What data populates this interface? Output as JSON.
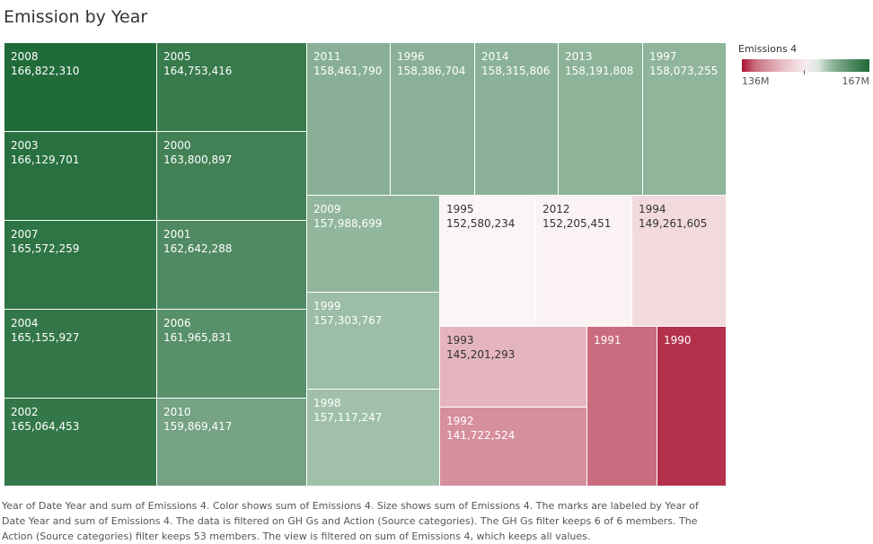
{
  "title": "Emission by Year",
  "legend": {
    "title": "Emissions 4",
    "min_label": "136M",
    "max_label": "167M"
  },
  "caption": "Year of Date Year and sum of Emissions 4.  Color shows sum of Emissions 4.  Size shows sum of Emissions 4.  The marks are labeled by Year of Date Year and sum of Emissions 4. The data is filtered on GH Gs and Action (Source categories). The GH Gs filter keeps 6 of 6 members. The Action (Source categories) filter keeps 53 members. The view is filtered on sum of Emissions 4, which keeps all values.",
  "chart_data": {
    "type": "treemap",
    "title": "Emission by Year",
    "measure": "Emissions 4",
    "color_range": [
      136000000,
      167000000
    ],
    "color_scale": {
      "low": "#a8102e",
      "mid": "#ffffff",
      "high": "#1f6a37"
    },
    "nodes": [
      {
        "year": "2008",
        "label": "166,822,310",
        "value": 166822310
      },
      {
        "year": "2003",
        "label": "166,129,701",
        "value": 166129701
      },
      {
        "year": "2007",
        "label": "165,572,259",
        "value": 165572259
      },
      {
        "year": "2004",
        "label": "165,155,927",
        "value": 165155927
      },
      {
        "year": "2002",
        "label": "165,064,453",
        "value": 165064453
      },
      {
        "year": "2005",
        "label": "164,753,416",
        "value": 164753416
      },
      {
        "year": "2000",
        "label": "163,800,897",
        "value": 163800897
      },
      {
        "year": "2001",
        "label": "162,642,288",
        "value": 162642288
      },
      {
        "year": "2006",
        "label": "161,965,831",
        "value": 161965831
      },
      {
        "year": "2010",
        "label": "159,869,417",
        "value": 159869417
      },
      {
        "year": "2011",
        "label": "158,461,790",
        "value": 158461790
      },
      {
        "year": "1996",
        "label": "158,386,704",
        "value": 158386704
      },
      {
        "year": "2014",
        "label": "158,315,806",
        "value": 158315806
      },
      {
        "year": "2013",
        "label": "158,191,808",
        "value": 158191808
      },
      {
        "year": "1997",
        "label": "158,073,255",
        "value": 158073255
      },
      {
        "year": "2009",
        "label": "157,988,699",
        "value": 157988699
      },
      {
        "year": "1999",
        "label": "157,303,767",
        "value": 157303767
      },
      {
        "year": "1998",
        "label": "157,117,247",
        "value": 157117247
      },
      {
        "year": "1995",
        "label": "152,580,234",
        "value": 152580234
      },
      {
        "year": "2012",
        "label": "152,205,451",
        "value": 152205451
      },
      {
        "year": "1994",
        "label": "149,261,605",
        "value": 149261605
      },
      {
        "year": "1993",
        "label": "145,201,293",
        "value": 145201293
      },
      {
        "year": "1992",
        "label": "141,722,524",
        "value": 141722524
      },
      {
        "year": "1991",
        "label": "",
        "value": 139200000
      },
      {
        "year": "1990",
        "label": "",
        "value": 136500000
      }
    ]
  }
}
